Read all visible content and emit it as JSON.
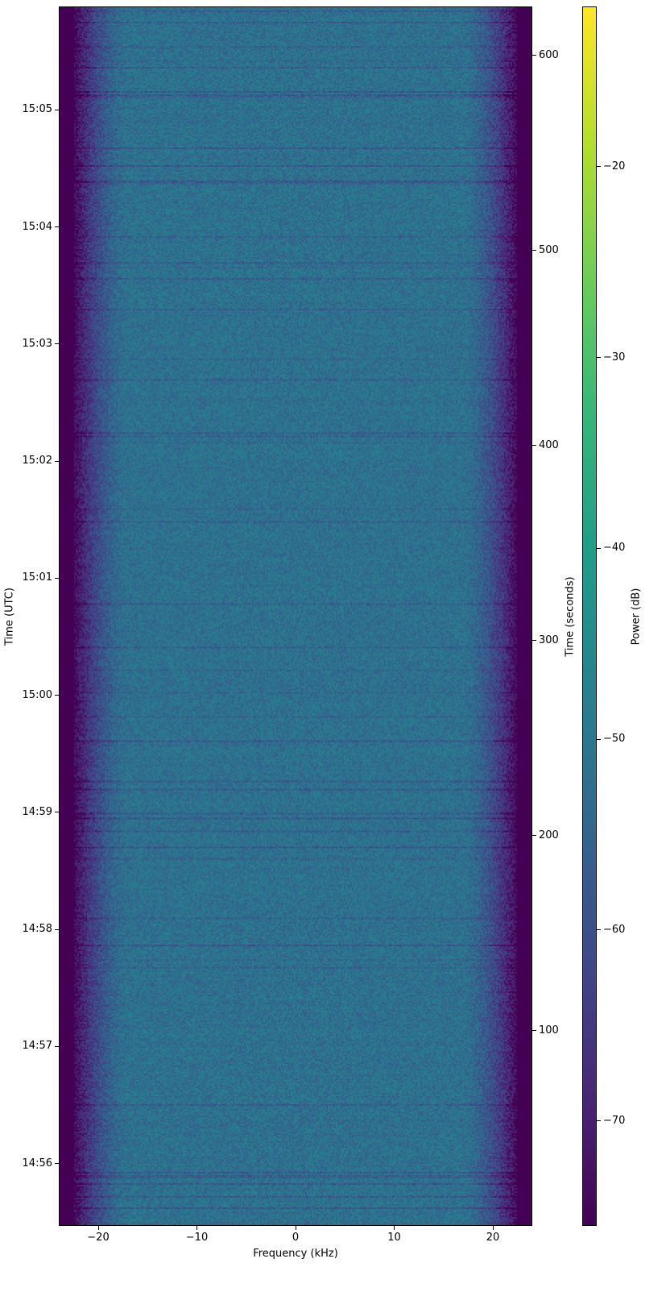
{
  "chart_data": {
    "type": "heatmap",
    "xlabel": "Frequency (kHz)",
    "ylabel_left": "Time (UTC)",
    "ylabel_right": "Time (seconds)",
    "colorbar_label": "Power (dB)",
    "colormap": "viridis",
    "xlim": [
      -24,
      24
    ],
    "x_ticks": [
      -20,
      -10,
      0,
      10,
      20
    ],
    "y_right_lim": [
      0,
      625
    ],
    "y_right_ticks": [
      100,
      200,
      300,
      400,
      500,
      600
    ],
    "y_left_lim": [
      "14:55:28",
      "15:05:53"
    ],
    "y_left_ticks": [
      "14:56",
      "14:57",
      "14:58",
      "14:59",
      "15:00",
      "15:01",
      "15:02",
      "15:03",
      "15:04",
      "15:05"
    ],
    "color_lim": [
      -75.5,
      -11.6
    ],
    "color_ticks": [
      -70,
      -60,
      -50,
      -40,
      -30,
      -20
    ],
    "description_values": {
      "passband_kHz": [
        -22,
        22
      ],
      "passband_level_dB": -52,
      "stopband_level_dB": -75
    }
  }
}
